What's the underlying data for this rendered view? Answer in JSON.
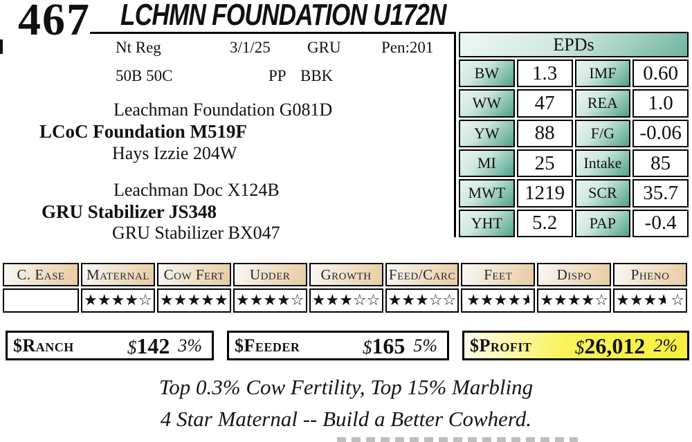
{
  "lot": {
    "number": "467",
    "title": "LCHMN FOUNDATION U172N"
  },
  "info": {
    "registration": "Nt Reg",
    "birth_date": "3/1/25",
    "herd_code": "GRU",
    "pen": "Pen:201",
    "breed_comp": "50B 50C",
    "polled": "PP",
    "color": "BBK"
  },
  "pedigree": {
    "sire": {
      "grandsire": "Leachman Foundation G081D",
      "name": "LCoC Foundation M519F",
      "granddam": "Hays Izzie 204W"
    },
    "dam": {
      "grandsire": "Leachman Doc X124B",
      "name": "GRU Stabilizer JS348",
      "granddam": "GRU Stabilizer BX047"
    }
  },
  "epds": {
    "title": "EPDs",
    "rows": [
      {
        "l1": "BW",
        "v1": "1.3",
        "l2": "IMF",
        "v2": "0.60"
      },
      {
        "l1": "WW",
        "v1": "47",
        "l2": "REA",
        "v2": "1.0"
      },
      {
        "l1": "YW",
        "v1": "88",
        "l2": "F/G",
        "v2": "-0.06"
      },
      {
        "l1": "MI",
        "v1": "25",
        "l2": "Intake",
        "v2": "85"
      },
      {
        "l1": "MWT",
        "v1": "1219",
        "l2": "SCR",
        "v2": "35.7"
      },
      {
        "l1": "YHT",
        "v1": "5.2",
        "l2": "PAP",
        "v2": "-0.4"
      }
    ]
  },
  "ratings": {
    "columns": [
      {
        "label": "C. Ease",
        "stars": []
      },
      {
        "label": "Maternal",
        "stars": [
          "full",
          "full",
          "full",
          "full",
          "empty"
        ]
      },
      {
        "label": "Cow Fert",
        "stars": [
          "full",
          "full",
          "full",
          "full",
          "full"
        ]
      },
      {
        "label": "Udder",
        "stars": [
          "full",
          "full",
          "full",
          "full",
          "empty"
        ]
      },
      {
        "label": "Growth",
        "stars": [
          "full",
          "full",
          "full",
          "empty",
          "empty"
        ]
      },
      {
        "label": "Feed/Carc",
        "stars": [
          "full",
          "full",
          "full",
          "empty",
          "empty"
        ]
      },
      {
        "label": "Feet",
        "stars": [
          "full",
          "full",
          "full",
          "full",
          "half"
        ]
      },
      {
        "label": "Dispo",
        "stars": [
          "full",
          "full",
          "full",
          "full",
          "empty"
        ]
      },
      {
        "label": "Pheno",
        "stars": [
          "full",
          "full",
          "full",
          "half",
          "spacer",
          "empty"
        ]
      }
    ]
  },
  "indexes": [
    {
      "label": "$Ranch",
      "value": "$142",
      "percentile": "3%",
      "highlight": false
    },
    {
      "label": "$Feeder",
      "value": "$165",
      "percentile": "5%",
      "highlight": false
    },
    {
      "label": "$Profit",
      "value": "$26,012",
      "percentile": "2%",
      "highlight": true
    }
  ],
  "notes": [
    "Top 0.3% Cow Fertility, Top 15% Marbling",
    "4 Star Maternal -- Build a Better Cowherd."
  ],
  "colors": {
    "teal": "#4fa38a",
    "teal_light": "#eaf5f1",
    "tan": "#e9cba1",
    "tan_light": "#f8f9f8",
    "yellow": "#f6ef3f"
  }
}
